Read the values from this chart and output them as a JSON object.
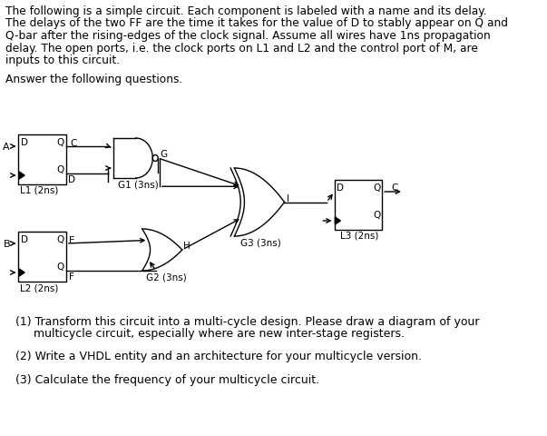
{
  "para1": "The following is a simple circuit. Each component is labeled with a name and its delay.",
  "para2": "The delays of the two FF are the time it takes for the value of D to stably appear on Q and",
  "para3": "Q-bar after the rising-edges of the clock signal. Assume all wires have 1ns propagation",
  "para4": "delay. The open ports, i.e. the clock ports on L1 and L2 and the control port of M, are",
  "para5": "inputs to this circuit.",
  "answer_text": "Answer the following questions.",
  "q1a": "(1) Transform this circuit into a multi-cycle design. Please draw a diagram of your",
  "q1b": "     multicycle circuit, especially where are new inter-stage registers.",
  "q2": "(2) Write a VHDL entity and an architecture for your multicycle version.",
  "q3": "(3) Calculate the frequency of your multicycle circuit.",
  "bg_color": "#ffffff",
  "text_color": "#000000",
  "fig_width": 6.03,
  "fig_height": 4.8,
  "dpi": 100
}
